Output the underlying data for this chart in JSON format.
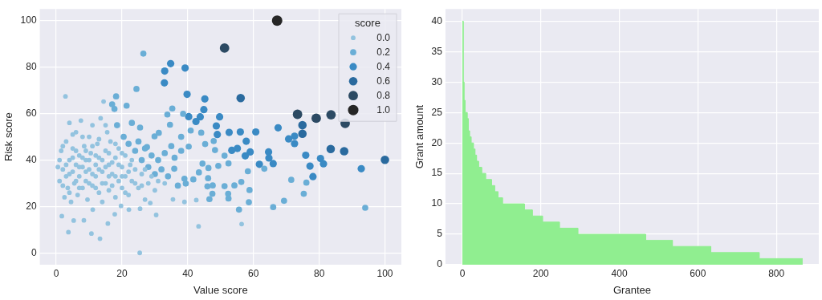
{
  "chart_data": [
    {
      "type": "scatter",
      "xlabel": "Value score",
      "ylabel": "Risk score",
      "legend_title": "score",
      "legend": "top right",
      "grid": true,
      "xlim": [
        -5,
        105
      ],
      "ylim": [
        -5,
        105
      ],
      "xticks": [
        0,
        20,
        40,
        60,
        80,
        100
      ],
      "yticks": [
        0,
        20,
        40,
        60,
        80,
        100
      ],
      "series": [
        {
          "name": "0.0",
          "color": "#93c3df",
          "x": [
            56.4,
            43.3,
            42.6,
            39.0,
            35.5,
            30.4,
            28.6,
            14.4,
            2.8,
            25.4,
            10.7,
            13.3,
            3.7,
            1.7,
            5.3,
            8.4,
            15.7,
            17.8,
            11.1,
            22.1,
            25.5,
            19.7,
            0.5,
            1,
            1.5,
            2,
            2.5,
            3,
            3,
            3.5,
            4,
            4,
            4.5,
            5,
            5,
            5.5,
            6,
            6,
            6.5,
            7,
            7,
            7.5,
            8,
            8,
            8.5,
            9,
            9,
            9.5,
            10,
            10,
            10.5,
            11,
            11,
            12,
            12,
            12.5,
            13,
            13,
            13.5,
            14,
            14,
            15,
            15,
            15.5,
            16,
            16,
            16.5,
            17,
            18,
            18,
            19,
            19,
            20,
            20,
            21,
            21,
            22,
            22.5,
            23,
            24,
            25,
            26,
            27,
            28,
            30,
            33,
            1,
            2,
            2,
            3,
            4,
            4,
            5,
            5,
            6,
            6,
            7,
            7,
            8,
            8,
            9,
            9,
            10,
            10,
            11,
            11,
            12,
            12,
            13,
            13,
            14,
            14,
            15,
            15,
            16,
            16,
            17,
            17,
            18,
            18,
            19,
            20,
            20,
            21,
            22,
            23,
            24,
            26,
            27,
            29,
            31
          ],
          "values": [
            12.5,
            11.5,
            22.8,
            22.0,
            23.1,
            16.4,
            21.5,
            65.2,
            67.4,
            0.1,
            8.4,
            6.2,
            9.0,
            15.9,
            14.0,
            14.1,
            12.7,
            16.7,
            18.7,
            18.7,
            19.1,
            20.3,
            37,
            31,
            44,
            36,
            24,
            48,
            33,
            28,
            40,
            56,
            22,
            35,
            45,
            30,
            52,
            38,
            25,
            42,
            33,
            57,
            37,
            28,
            46,
            40,
            31,
            23,
            50,
            36,
            43,
            29,
            55,
            38,
            33,
            47,
            26,
            41,
            58,
            35,
            22,
            44,
            30,
            52,
            38,
            27,
            48,
            34,
            41,
            24,
            31,
            45,
            37,
            28,
            42,
            33,
            25,
            38,
            31,
            36,
            28,
            34,
            23,
            30,
            27,
            30,
            40,
            29,
            46,
            38,
            34,
            26,
            41,
            51,
            31,
            44,
            37,
            28,
            41,
            50,
            35,
            44,
            30,
            40,
            34,
            46,
            42,
            28,
            36,
            49,
            40,
            30,
            37,
            55,
            33,
            43,
            29,
            39,
            33,
            47,
            38,
            33,
            43,
            26,
            35,
            40,
            30,
            29,
            36,
            33,
            31
          ],
          "sizes": [
            0.2,
            0.2,
            0.2,
            0.2,
            0.2,
            0.2,
            0.2,
            0.2,
            0.2,
            0.2,
            0.2,
            0.2,
            0.2,
            0.2,
            0.2,
            0.2,
            0.2,
            0.2,
            0.2,
            0.2,
            0.2,
            0.2,
            0.2,
            0.2,
            0.2,
            0.2,
            0.2,
            0.2,
            0.2,
            0.2,
            0.2,
            0.2,
            0.2,
            0.2,
            0.2,
            0.2,
            0.2,
            0.2,
            0.2,
            0.2,
            0.2,
            0.2,
            0.2,
            0.2,
            0.2,
            0.2,
            0.2,
            0.2,
            0.2,
            0.2,
            0.2,
            0.2,
            0.2,
            0.2,
            0.2,
            0.2,
            0.2,
            0.2,
            0.2,
            0.2,
            0.2,
            0.2,
            0.2,
            0.2,
            0.2,
            0.2,
            0.2,
            0.2,
            0.2,
            0.2,
            0.2,
            0.2,
            0.2,
            0.2,
            0.2,
            0.2,
            0.2,
            0.2,
            0.2,
            0.2,
            0.2,
            0.2,
            0.2,
            0.2,
            0.2,
            0.2,
            0.2,
            0.2,
            0.2,
            0.2,
            0.2,
            0.2,
            0.2,
            0.2,
            0.2,
            0.2,
            0.2,
            0.2,
            0.2,
            0.2,
            0.2,
            0.2,
            0.2,
            0.2,
            0.2,
            0.2,
            0.2,
            0.2,
            0.2,
            0.2,
            0.2,
            0.2,
            0.2,
            0.2,
            0.2,
            0.2,
            0.2,
            0.2,
            0.2,
            0.2,
            0.2,
            0.2,
            0.2,
            0.2,
            0.2,
            0.2,
            0.2,
            0.2,
            0.2,
            0.2,
            0.2
          ]
        },
        {
          "name": "0.2",
          "color": "#6aaed6",
          "x": [
            26.5,
            24.4,
            94.0,
            76.1,
            75.3,
            71.5,
            69.3,
            66.0,
            63.3,
            58.3,
            58.8,
            58.6,
            54.2,
            56.3,
            55.6,
            52.3,
            52.4,
            51.2,
            49.3,
            52.4,
            51.2,
            47.9,
            48.3,
            45.3,
            44.1,
            38.6,
            40.9,
            40.3,
            44.5,
            43.4,
            46.3,
            46.2,
            46.0,
            47.6,
            47.5,
            46.6,
            41.7,
            39.4,
            35.3,
            33.8,
            34.6,
            35.9,
            29.9,
            31.2,
            27.6,
            25.5,
            21.4,
            18.2,
            17.7,
            17,
            18.5,
            20.5,
            22,
            23,
            24,
            25,
            26,
            27,
            28,
            29,
            30,
            31,
            32,
            33,
            34,
            35,
            36,
            37,
            38,
            39,
            38
          ],
          "values": [
            85.8,
            70.6,
            19.5,
            30.3,
            25.5,
            31.5,
            22.5,
            19.8,
            36.3,
            35.2,
            27.1,
            21.9,
            29.1,
            30.6,
            18.7,
            25.5,
            23.5,
            28.8,
            37.5,
            38.6,
            41.9,
            48.2,
            44.3,
            46.9,
            51.8,
            59.9,
            52.7,
            45.8,
            38.5,
            34.7,
            36.6,
            32.2,
            28.7,
            29.1,
            25.5,
            23.2,
            31.7,
            29.9,
            62.2,
            59.6,
            55.2,
            36.3,
            50.2,
            51.7,
            45.6,
            54.0,
            63.4,
            67.4,
            62.0,
            64,
            55,
            50,
            47,
            56,
            44,
            48,
            40,
            45,
            37,
            42,
            34,
            40,
            36,
            43,
            33,
            46,
            41,
            29,
            50,
            32,
            44
          ],
          "sizes": [
            0.35,
            0.35,
            0.35,
            0.35,
            0.35,
            0.35,
            0.35,
            0.35,
            0.35,
            0.35,
            0.35,
            0.35,
            0.35,
            0.35,
            0.35,
            0.35,
            0.35,
            0.35,
            0.35,
            0.35,
            0.35,
            0.35,
            0.35,
            0.35,
            0.35,
            0.35,
            0.35,
            0.35,
            0.35,
            0.35,
            0.35,
            0.35,
            0.35,
            0.35,
            0.35,
            0.35,
            0.35,
            0.35,
            0.35,
            0.35,
            0.35,
            0.35,
            0.35,
            0.35,
            0.35,
            0.35,
            0.35,
            0.35,
            0.35,
            0.35,
            0.35,
            0.35,
            0.35,
            0.35,
            0.35,
            0.35,
            0.35,
            0.35,
            0.35,
            0.35,
            0.35,
            0.35,
            0.35,
            0.35,
            0.35,
            0.35,
            0.35,
            0.35,
            0.35,
            0.35,
            0.35
          ]
        },
        {
          "name": "0.4",
          "color": "#3a8ac4",
          "x": [
            34.8,
            33.0,
            39.2,
            32.9,
            39.8,
            45.2,
            67.5,
            60.7,
            72.5,
            70.7,
            72.5,
            92.8,
            75.9,
            80.4,
            81.3,
            77.2,
            78.1,
            64.7,
            64.6,
            66.0,
            61.8,
            57.8,
            59.0,
            57.5,
            55.1,
            53.4,
            56.0,
            52.6,
            49.7,
            48.7,
            49.0,
            44.9,
            43.8,
            42.5,
            40.3
          ],
          "values": [
            81.5,
            78.3,
            79.6,
            73.2,
            68.3,
            66.3,
            53.9,
            52.1,
            50.3,
            49.1,
            47.1,
            36.3,
            42.1,
            40.7,
            38.4,
            37.4,
            32.9,
            40.9,
            43.5,
            38.5,
            38.2,
            48.1,
            43.5,
            41.8,
            45.0,
            44.2,
            52.1,
            51.9,
            58.6,
            54.7,
            51.0,
            61.7,
            58.6,
            56.6,
            58.7
          ],
          "sizes": [
            0.5,
            0.5,
            0.5,
            0.5,
            0.5,
            0.5,
            0.5,
            0.5,
            0.5,
            0.5,
            0.5,
            0.5,
            0.5,
            0.5,
            0.5,
            0.5,
            0.5,
            0.5,
            0.5,
            0.5,
            0.5,
            0.5,
            0.5,
            0.5,
            0.5,
            0.5,
            0.5,
            0.5,
            0.5,
            0.5,
            0.5,
            0.5,
            0.5,
            0.5,
            0.5
          ]
        },
        {
          "name": "0.6",
          "color": "#2a6a9e",
          "x": [
            56.1,
            74.9,
            74.9,
            83.5,
            87.6,
            100
          ],
          "values": [
            66.7,
            55.0,
            51.3,
            44.8,
            43.8,
            40.1
          ],
          "sizes": [
            0.66,
            0.66,
            0.66,
            0.66,
            0.66,
            0.66
          ]
        },
        {
          "name": "0.8",
          "color": "#2c4a63",
          "x": [
            51.2,
            73.4,
            83.6,
            79.1,
            87.9
          ],
          "values": [
            88.2,
            59.7,
            59.5,
            58.0,
            55.8
          ],
          "sizes": [
            0.83,
            0.83,
            0.83,
            0.83,
            0.83
          ]
        },
        {
          "name": "1.0",
          "color": "#262626",
          "x": [
            67.2
          ],
          "values": [
            100
          ],
          "sizes": [
            1
          ]
        }
      ]
    },
    {
      "type": "area",
      "xlabel": "Grantee",
      "ylabel": "Grant amount",
      "grid": true,
      "color": "#90ee90",
      "xlim": [
        -43,
        908
      ],
      "ylim": [
        0,
        42
      ],
      "xticks": [
        0,
        200,
        400,
        600,
        800
      ],
      "yticks": [
        0,
        5,
        10,
        15,
        20,
        25,
        30,
        35,
        40
      ],
      "x": [
        0,
        2,
        2,
        4,
        4,
        7,
        7,
        12,
        12,
        15,
        15,
        18,
        18,
        22,
        22,
        28,
        28,
        32,
        32,
        36,
        36,
        41,
        41,
        49,
        49,
        59,
        59,
        74,
        74,
        82,
        82,
        91,
        91,
        102,
        102,
        158,
        158,
        178,
        178,
        204,
        204,
        247,
        247,
        294,
        294,
        467,
        467,
        535,
        535,
        633,
        633,
        756,
        756,
        867
      ],
      "values": [
        40,
        40,
        30,
        30,
        27,
        27,
        25,
        25,
        24,
        24,
        22,
        22,
        21,
        21,
        20,
        20,
        19,
        19,
        18,
        18,
        17,
        17,
        16,
        16,
        15,
        15,
        14,
        14,
        13,
        13,
        12,
        12,
        11,
        11,
        10,
        10,
        9,
        9,
        8,
        8,
        7,
        7,
        6,
        6,
        5,
        5,
        4,
        4,
        3,
        3,
        2,
        2,
        1,
        1
      ]
    }
  ]
}
